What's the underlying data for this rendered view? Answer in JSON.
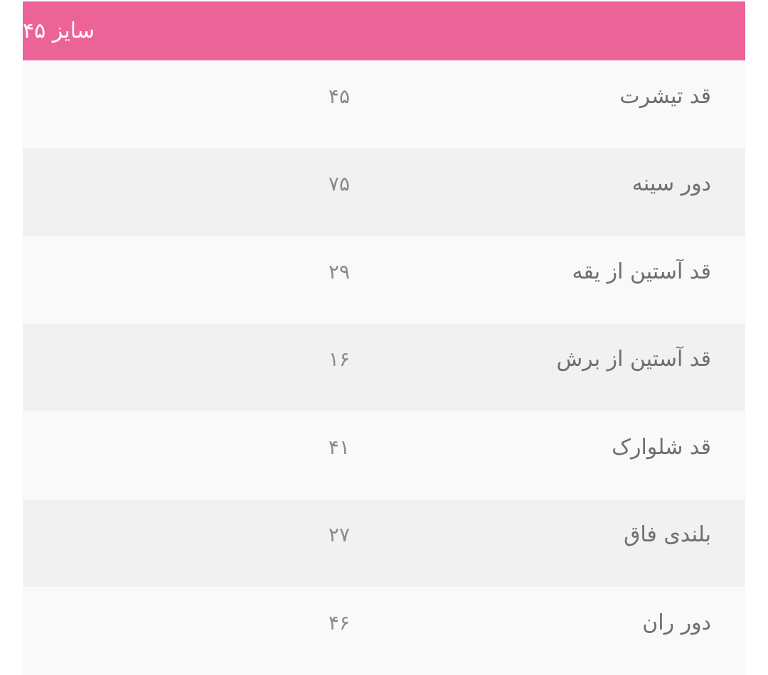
{
  "header": {
    "title": "سایز ۴۵"
  },
  "colors": {
    "header_bg": "#ec6497"
  },
  "rows": [
    {
      "label": "قد تیشرت",
      "value": "۴۵"
    },
    {
      "label": "دور سینه",
      "value": "۷۵"
    },
    {
      "label": "قد آستین از یقه",
      "value": "۲۹"
    },
    {
      "label": "قد آستین از برش",
      "value": "۱۶"
    },
    {
      "label": "قد شلوارک",
      "value": "۴۱"
    },
    {
      "label": "بلندی فاق",
      "value": "۲۷"
    },
    {
      "label": "دور ران",
      "value": "۴۶"
    }
  ]
}
